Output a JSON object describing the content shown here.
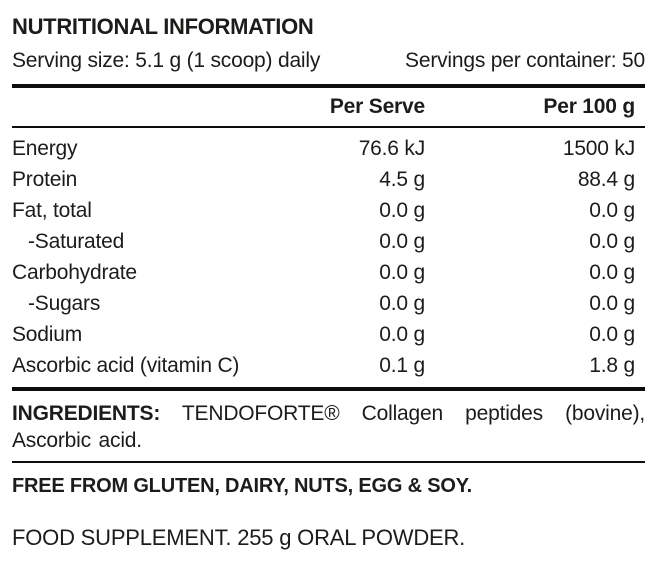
{
  "label": {
    "title": "NUTRITIONAL INFORMATION",
    "serving_size": "Serving size: 5.1 g (1 scoop) daily",
    "servings_per_container": "Servings per container: 50",
    "columns": {
      "per_serve": "Per Serve",
      "per_100g": "Per 100 g"
    },
    "rows": [
      {
        "name": "Energy",
        "per_serve": "76.6 kJ",
        "per_100g": "1500 kJ"
      },
      {
        "name": "Protein",
        "per_serve": "4.5 g",
        "per_100g": "88.4 g"
      },
      {
        "name": "Fat, total",
        "per_serve": "0.0 g",
        "per_100g": "0.0 g"
      },
      {
        "name": "-Saturated",
        "per_serve": "0.0 g",
        "per_100g": "0.0 g"
      },
      {
        "name": "Carbohydrate",
        "per_serve": "0.0 g",
        "per_100g": "0.0 g"
      },
      {
        "name": "-Sugars",
        "per_serve": "0.0 g",
        "per_100g": "0.0 g"
      },
      {
        "name": "Sodium",
        "per_serve": "0.0 g",
        "per_100g": "0.0 g"
      },
      {
        "name": "Ascorbic acid (vitamin C)",
        "per_serve": "0.1 g",
        "per_100g": "1.8 g"
      }
    ],
    "ingredients_label": "INGREDIENTS:",
    "ingredients_text": "TENDOFORTE® Collagen peptides (bovine), Ascorbic acid.",
    "free_from": "FREE FROM GLUTEN, DAIRY, NUTS, EGG & SOY.",
    "supplement": "FOOD SUPPLEMENT. 255 g ORAL POWDER.",
    "colors": {
      "text": "#1c1c1a",
      "rule": "#0d0d0d",
      "background": "#ffffff"
    }
  }
}
